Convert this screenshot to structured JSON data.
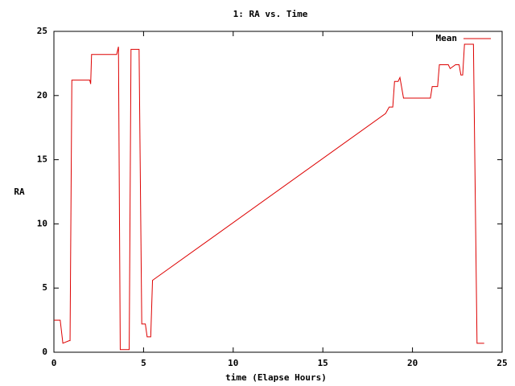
{
  "chart_data": {
    "type": "line",
    "title": "1: RA vs. Time",
    "xlabel": "time (Elapse Hours)",
    "ylabel": "RA",
    "x": [
      0,
      0.35,
      0.5,
      0.85,
      0.9,
      1.0,
      2.0,
      2.05,
      2.1,
      3.5,
      3.6,
      3.7,
      4.2,
      4.3,
      4.75,
      4.9,
      5.1,
      5.2,
      5.4,
      5.5,
      5.6,
      18.5,
      18.7,
      18.9,
      19.0,
      19.2,
      19.3,
      19.5,
      21.0,
      21.1,
      21.4,
      21.5,
      22.0,
      22.1,
      22.4,
      22.6,
      22.7,
      22.8,
      22.9,
      23.4,
      23.6,
      24.0
    ],
    "series": [
      {
        "name": "Mean",
        "color": "#dd0000",
        "values": [
          2.5,
          2.5,
          0.7,
          0.9,
          0.9,
          21.2,
          21.2,
          20.9,
          23.2,
          23.2,
          23.8,
          0.2,
          0.2,
          23.6,
          23.6,
          2.2,
          2.2,
          1.2,
          1.2,
          5.6,
          5.7,
          18.6,
          19.1,
          19.1,
          21.1,
          21.1,
          21.4,
          19.8,
          19.8,
          20.7,
          20.7,
          22.4,
          22.4,
          22.1,
          22.4,
          22.4,
          21.6,
          21.6,
          24.0,
          24.0,
          0.7,
          0.7
        ]
      }
    ],
    "xlim": [
      0,
      25
    ],
    "xticks": [
      0,
      5,
      10,
      15,
      20,
      25
    ],
    "ylim": [
      0,
      25
    ],
    "yticks": [
      0,
      5,
      10,
      15,
      20,
      25
    ],
    "legend": "top-right"
  }
}
